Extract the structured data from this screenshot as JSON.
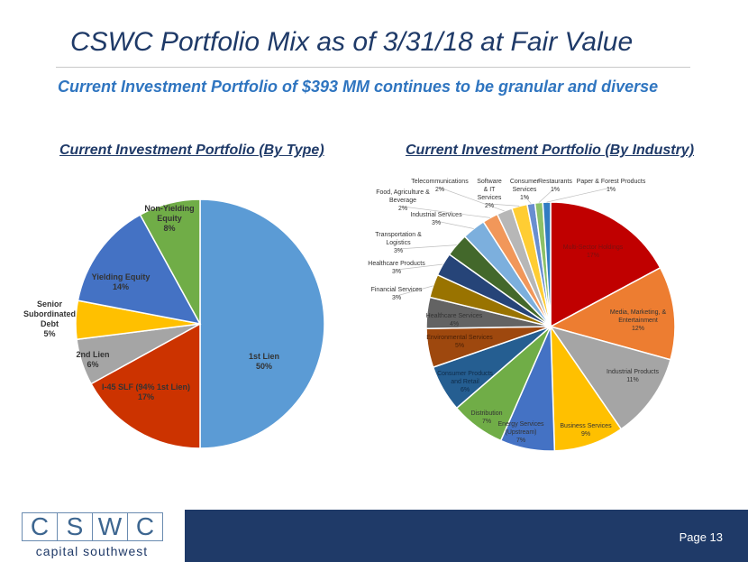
{
  "header": {
    "title": "CSWC Portfolio Mix as of 3/31/18 at Fair Value",
    "subtitle": "Current Investment Portfolio of $393 MM continues to be granular and diverse"
  },
  "footer": {
    "logo_letters": [
      "C",
      "S",
      "W",
      "C"
    ],
    "logo_text": "capital southwest",
    "page_label": "Page 13"
  },
  "chart_data": [
    {
      "type": "pie",
      "title": "Current Investment Portfolio (By Type)",
      "slices": [
        {
          "label": "1st Lien",
          "value": 50,
          "pct": "50%",
          "color": "#5b9bd5"
        },
        {
          "label": "I-45 SLF (94% 1st Lien)",
          "value": 17,
          "pct": "17%",
          "color": "#cc3300"
        },
        {
          "label": "2nd Lien",
          "value": 6,
          "pct": "6%",
          "color": "#a5a5a5"
        },
        {
          "label": "Senior Subordinated Debt",
          "value": 5,
          "pct": "5%",
          "color": "#ffc000"
        },
        {
          "label": "Yielding Equity",
          "value": 14,
          "pct": "14%",
          "color": "#4472c4"
        },
        {
          "label": "Non-Yielding Equity",
          "value": 8,
          "pct": "8%",
          "color": "#70ad47"
        }
      ]
    },
    {
      "type": "pie",
      "title": "Current Investment Portfolio (By Industry)",
      "slices": [
        {
          "label": "Multi-Sector Holdings",
          "value": 17,
          "pct": "17%",
          "color": "#c00000"
        },
        {
          "label": "Media, Marketing, & Entertainment",
          "value": 12,
          "pct": "12%",
          "color": "#ed7d31"
        },
        {
          "label": "Industrial Products",
          "value": 11,
          "pct": "11%",
          "color": "#a5a5a5"
        },
        {
          "label": "Business Services",
          "value": 9,
          "pct": "9%",
          "color": "#ffc000"
        },
        {
          "label": "Energy Services (Upstream)",
          "value": 7,
          "pct": "7%",
          "color": "#4472c4"
        },
        {
          "label": "Distribution",
          "value": 7,
          "pct": "7%",
          "color": "#70ad47"
        },
        {
          "label": "Consumer Products and Retail",
          "value": 6,
          "pct": "6%",
          "color": "#255e91"
        },
        {
          "label": "Environmental Services",
          "value": 5,
          "pct": "5%",
          "color": "#9e480e"
        },
        {
          "label": "Healthcare Services",
          "value": 4,
          "pct": "4%",
          "color": "#636363"
        },
        {
          "label": "Financial Services",
          "value": 3,
          "pct": "3%",
          "color": "#997300"
        },
        {
          "label": "Healthcare Products",
          "value": 3,
          "pct": "3%",
          "color": "#264478"
        },
        {
          "label": "Transportation & Logistics",
          "value": 3,
          "pct": "3%",
          "color": "#43682b"
        },
        {
          "label": "Industrial Services",
          "value": 3,
          "pct": "3%",
          "color": "#7cafdd"
        },
        {
          "label": "Food, Agriculture & Beverage",
          "value": 2,
          "pct": "2%",
          "color": "#f1975a"
        },
        {
          "label": "Telecommunications",
          "value": 2,
          "pct": "2%",
          "color": "#b7b7b7"
        },
        {
          "label": "Software & IT Services",
          "value": 2,
          "pct": "2%",
          "color": "#ffcd33"
        },
        {
          "label": "Consumer Services",
          "value": 1,
          "pct": "1%",
          "color": "#698ed0"
        },
        {
          "label": "Restaurants",
          "value": 1,
          "pct": "1%",
          "color": "#8cc168"
        },
        {
          "label": "Paper & Forest Products",
          "value": 1,
          "pct": "1%",
          "color": "#327dc2"
        }
      ]
    }
  ]
}
